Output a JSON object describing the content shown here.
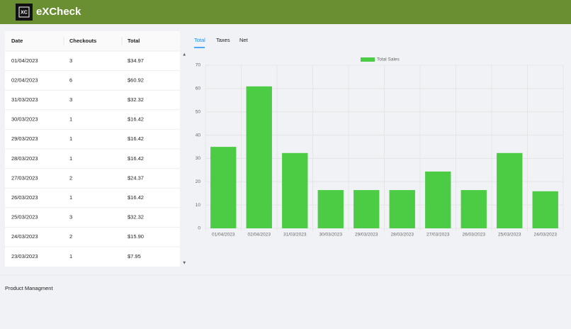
{
  "header": {
    "logo_text": "XC",
    "title": "eXCheck"
  },
  "table": {
    "columns": [
      "Date",
      "Checkouts",
      "Total"
    ],
    "rows": [
      [
        "01/04/2023",
        "3",
        "$34.97"
      ],
      [
        "02/04/2023",
        "6",
        "$60.92"
      ],
      [
        "31/03/2023",
        "3",
        "$32.32"
      ],
      [
        "30/03/2023",
        "1",
        "$16.42"
      ],
      [
        "29/03/2023",
        "1",
        "$16.42"
      ],
      [
        "28/03/2023",
        "1",
        "$16.42"
      ],
      [
        "27/03/2023",
        "2",
        "$24.37"
      ],
      [
        "26/03/2023",
        "1",
        "$16.42"
      ],
      [
        "25/03/2023",
        "3",
        "$32.32"
      ],
      [
        "24/03/2023",
        "2",
        "$15.90"
      ],
      [
        "23/03/2023",
        "1",
        "$7.95"
      ]
    ]
  },
  "tabs": [
    "Total",
    "Taxes",
    "Net"
  ],
  "chart_data": {
    "type": "bar",
    "categories": [
      "01/04/2023",
      "02/04/2023",
      "31/03/2023",
      "30/03/2023",
      "29/03/2023",
      "28/03/2023",
      "27/03/2023",
      "26/03/2023",
      "25/03/2023",
      "24/03/2023"
    ],
    "series": [
      {
        "name": "Total Sales",
        "color": "#4ccc44",
        "values": [
          34.97,
          60.92,
          32.32,
          16.42,
          16.42,
          16.42,
          24.37,
          16.42,
          32.32,
          15.9
        ]
      }
    ],
    "ylim": [
      0,
      70
    ],
    "yticks": [
      0,
      10,
      20,
      30,
      40,
      50,
      60,
      70
    ],
    "grid": true
  },
  "footer": {
    "section": "Product Managment"
  }
}
